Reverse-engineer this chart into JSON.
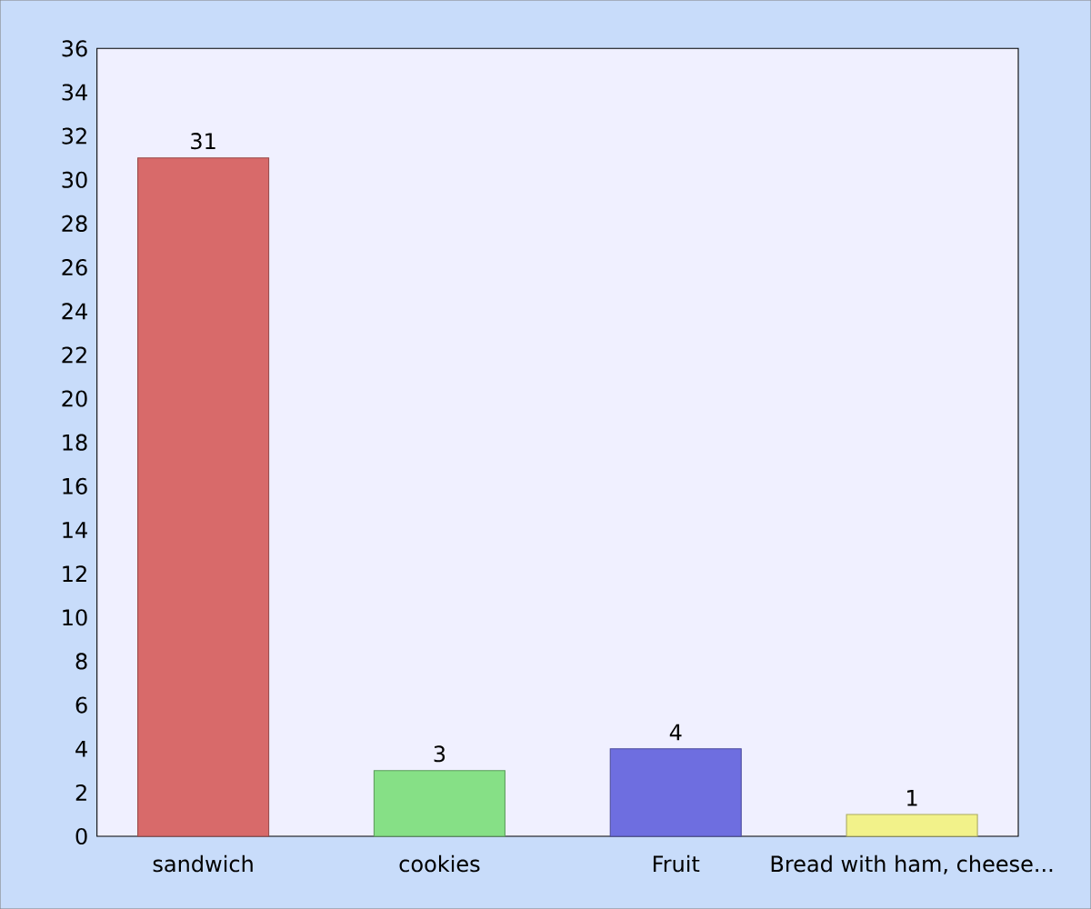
{
  "chart_data": {
    "type": "bar",
    "categories": [
      "sandwich",
      "cookies",
      "Fruit",
      "Bread with ham, cheese..."
    ],
    "values": [
      31,
      3,
      4,
      1
    ],
    "colors": [
      "#d86a6a",
      "#86e086",
      "#6e6ee0",
      "#f2f28a"
    ],
    "ylim": [
      0,
      36
    ],
    "yticks": [
      0,
      2,
      4,
      6,
      8,
      10,
      12,
      14,
      16,
      18,
      20,
      22,
      24,
      26,
      28,
      30,
      32,
      34,
      36
    ],
    "data_labels": true
  }
}
